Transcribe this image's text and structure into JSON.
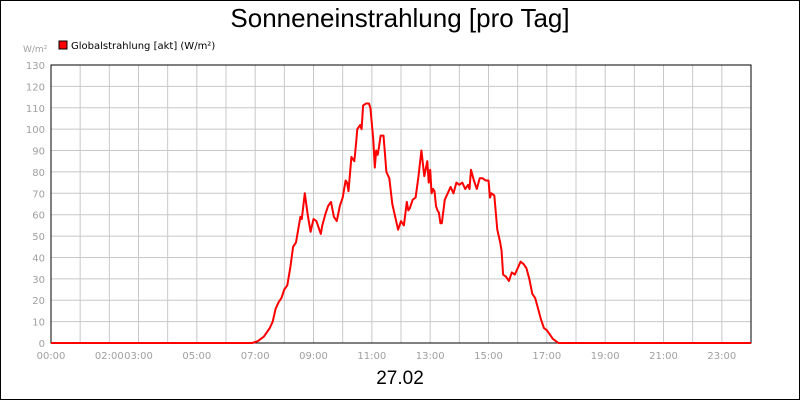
{
  "chart_data": {
    "type": "line",
    "title": "Sonneneinstrahlung [pro Tag]",
    "xlabel": "27.02",
    "ylabel": "W/m²",
    "ylim": [
      0,
      130
    ],
    "yticks": [
      0,
      10,
      20,
      30,
      40,
      50,
      60,
      70,
      80,
      90,
      100,
      110,
      120,
      130
    ],
    "xlim": [
      0,
      24
    ],
    "xtick_labels": [
      "00:00",
      "02:00",
      "03:00",
      "05:00",
      "07:00",
      "09:00",
      "11:00",
      "13:00",
      "15:00",
      "17:00",
      "19:00",
      "21:00",
      "23:00"
    ],
    "xtick_hours": [
      0,
      2,
      3,
      5,
      7,
      9,
      11,
      13,
      15,
      17,
      19,
      21,
      23
    ],
    "grid": true,
    "legend_position": "top-left",
    "series": [
      {
        "name": "Globalstrahlung [akt] (W/m²)",
        "color": "#ff0000",
        "x": [
          0,
          6.9,
          7.1,
          7.3,
          7.5,
          7.6,
          7.7,
          7.8,
          7.9,
          8.0,
          8.1,
          8.2,
          8.3,
          8.4,
          8.5,
          8.55,
          8.6,
          8.7,
          8.8,
          8.9,
          9.0,
          9.1,
          9.2,
          9.25,
          9.3,
          9.4,
          9.5,
          9.6,
          9.7,
          9.8,
          9.9,
          10.0,
          10.1,
          10.15,
          10.2,
          10.3,
          10.4,
          10.45,
          10.5,
          10.6,
          10.65,
          10.7,
          10.8,
          10.9,
          10.95,
          11.05,
          11.1,
          11.15,
          11.2,
          11.25,
          11.3,
          11.4,
          11.5,
          11.6,
          11.7,
          11.8,
          11.9,
          12.0,
          12.1,
          12.2,
          12.25,
          12.3,
          12.4,
          12.5,
          12.6,
          12.7,
          12.8,
          12.9,
          12.95,
          13.0,
          13.05,
          13.1,
          13.15,
          13.2,
          13.25,
          13.3,
          13.35,
          13.4,
          13.5,
          13.6,
          13.7,
          13.8,
          13.9,
          14.0,
          14.1,
          14.2,
          14.3,
          14.35,
          14.4,
          14.5,
          14.6,
          14.7,
          14.8,
          14.9,
          15.0,
          15.05,
          15.1,
          15.2,
          15.3,
          15.4,
          15.45,
          15.5,
          15.6,
          15.7,
          15.8,
          15.9,
          16.0,
          16.1,
          16.2,
          16.3,
          16.4,
          16.5,
          16.6,
          16.7,
          16.8,
          16.9,
          17.0,
          17.1,
          17.2,
          17.3,
          17.4,
          17.5,
          17.6,
          17.7,
          17.8,
          17.9,
          18.0,
          18.1,
          18.3,
          24
        ],
        "values": [
          0,
          0,
          1,
          3,
          7,
          10,
          16,
          19,
          21,
          25,
          27,
          35,
          45,
          47,
          55,
          59,
          58,
          70,
          60,
          52,
          58,
          57,
          53,
          51,
          55,
          60,
          64,
          66,
          59,
          57,
          64,
          68,
          76,
          75,
          71,
          87,
          85,
          92,
          100,
          102,
          100,
          111,
          112,
          112,
          110,
          95,
          82,
          90,
          88,
          92,
          97,
          97,
          80,
          77,
          65,
          59,
          53,
          57,
          55,
          66,
          62,
          63,
          67,
          68,
          78,
          90,
          78,
          85,
          75,
          81,
          70,
          72,
          71,
          64,
          62,
          61,
          56,
          56,
          67,
          70,
          73,
          70,
          75,
          74,
          75,
          72,
          74,
          72,
          81,
          76,
          72,
          77,
          77,
          76,
          76,
          68,
          70,
          69,
          53,
          47,
          43,
          32,
          31,
          29,
          33,
          32,
          35,
          38,
          37,
          35,
          30,
          23,
          21,
          16,
          11,
          7,
          6,
          4,
          2,
          1,
          0,
          0,
          0,
          0,
          0,
          0,
          0,
          0,
          0,
          0
        ]
      }
    ]
  }
}
